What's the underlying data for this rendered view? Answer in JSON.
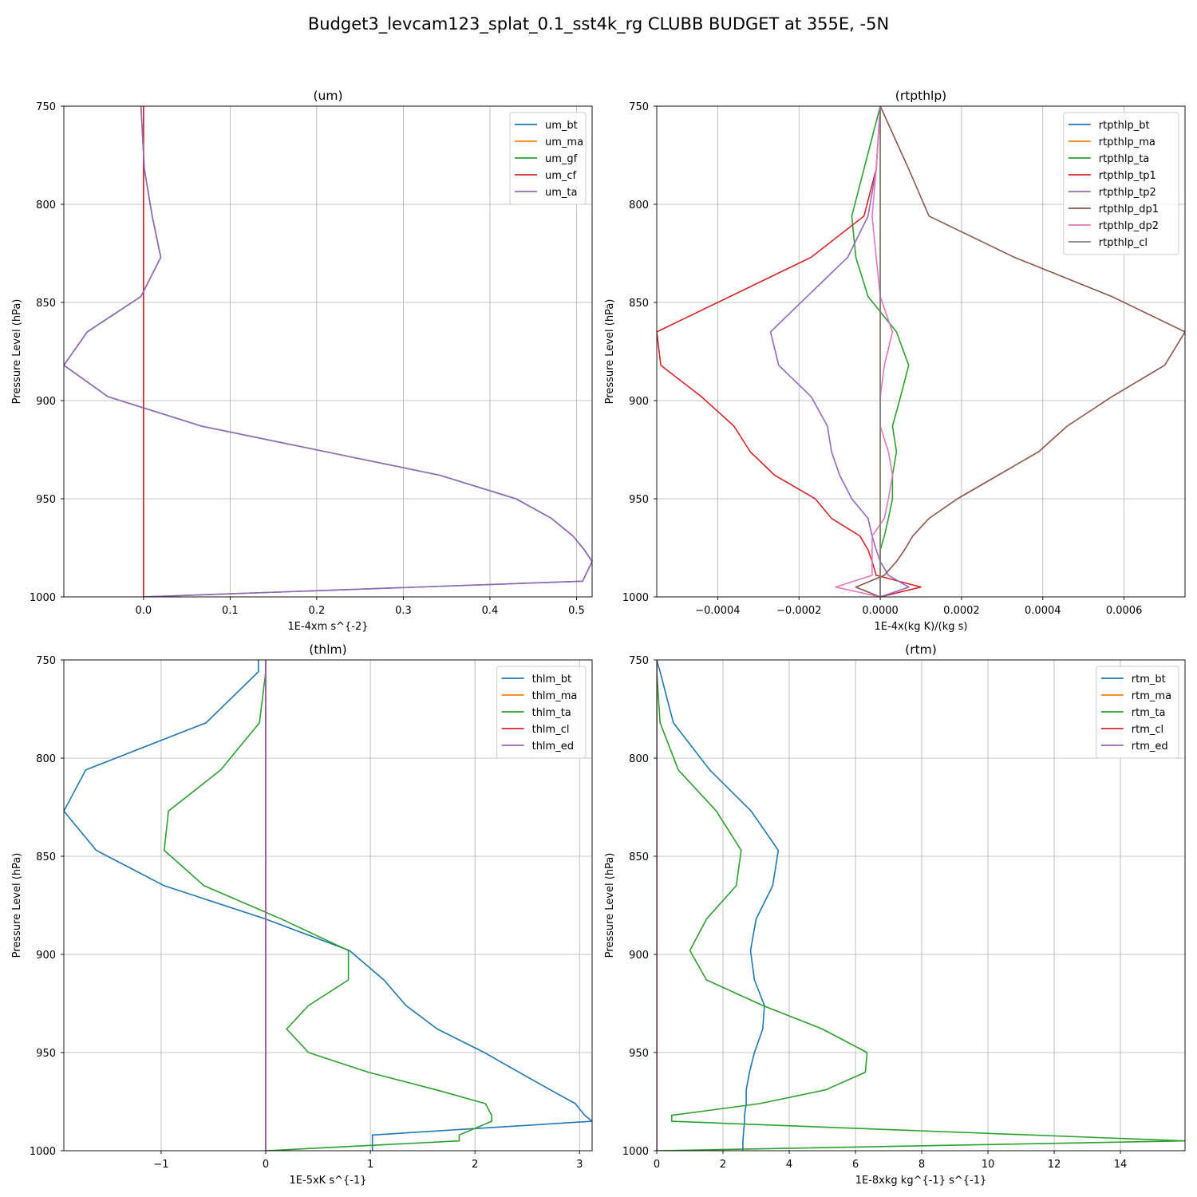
{
  "figure": {
    "title": "Budget3_levcam123_splat_0.1_sst4k_rg CLUBB BUDGET at 355E, -5N"
  },
  "chart_data": [
    {
      "type": "line",
      "title": "(um)",
      "xlabel": "1E-4xm s^{-2}",
      "ylabel": "Pressure Level (hPa)",
      "xlim": [
        -0.092,
        0.518
      ],
      "ylim": [
        1000,
        750
      ],
      "xticks": [
        0.0,
        0.1,
        0.2,
        0.3,
        0.4,
        0.5
      ],
      "xtick_labels": [
        "0.0",
        "0.1",
        "0.2",
        "0.3",
        "0.4",
        "0.5"
      ],
      "yticks": [
        750,
        800,
        850,
        900,
        950,
        1000
      ],
      "ytick_labels": [
        "750",
        "800",
        "850",
        "900",
        "950",
        "1000"
      ],
      "grid": true,
      "legend": "upper right",
      "levels": [
        750,
        782,
        806,
        827,
        847,
        865,
        882,
        898,
        913,
        926,
        938,
        950,
        960,
        969,
        976,
        982,
        992,
        1000
      ],
      "series": [
        {
          "name": "um_bt",
          "color": "#1f77b4",
          "values": [
            0,
            0,
            0,
            0,
            0,
            0,
            0,
            0,
            0,
            0,
            0,
            0,
            0,
            0,
            0,
            0,
            0,
            0
          ]
        },
        {
          "name": "um_ma",
          "color": "#ff7f0e",
          "values": [
            0,
            0,
            0,
            0,
            0,
            0,
            0,
            0,
            0,
            0,
            0,
            0,
            0,
            0,
            0,
            0,
            0,
            0
          ]
        },
        {
          "name": "um_gf",
          "color": "#2ca02c",
          "values": [
            -0.003,
            0.001,
            0.01,
            0.02,
            -0.003,
            -0.065,
            -0.092,
            -0.041,
            0.067,
            0.21,
            0.342,
            0.43,
            0.471,
            0.496,
            0.509,
            0.518,
            0.507,
            0.0
          ]
        },
        {
          "name": "um_cf",
          "color": "#d62728",
          "values": [
            0,
            0,
            0,
            0,
            0,
            0,
            0,
            0,
            0,
            0,
            0,
            0,
            0,
            0,
            0,
            0,
            0,
            0
          ]
        },
        {
          "name": "um_ta",
          "color": "#9467bd",
          "values": [
            -0.003,
            0.001,
            0.01,
            0.02,
            -0.003,
            -0.065,
            -0.092,
            -0.041,
            0.067,
            0.21,
            0.342,
            0.43,
            0.471,
            0.496,
            0.509,
            0.518,
            0.507,
            0.0
          ]
        }
      ]
    },
    {
      "type": "line",
      "title": "(rtpthlp)",
      "xlabel": "1E-4x(kg K)/(kg s)",
      "ylabel": "Pressure Level (hPa)",
      "xlim": [
        -0.00055,
        0.00075
      ],
      "ylim": [
        1000,
        750
      ],
      "xticks": [
        -0.0004,
        -0.0002,
        0.0,
        0.0002,
        0.0004,
        0.0006
      ],
      "xtick_labels": [
        "−0.0004",
        "−0.0002",
        "0.0000",
        "0.0002",
        "0.0004",
        "0.0006"
      ],
      "yticks": [
        750,
        800,
        850,
        900,
        950,
        1000
      ],
      "ytick_labels": [
        "750",
        "800",
        "850",
        "900",
        "950",
        "1000"
      ],
      "grid": true,
      "legend": "upper right",
      "levels": [
        750,
        782,
        806,
        827,
        847,
        865,
        882,
        898,
        913,
        926,
        938,
        950,
        960,
        969,
        976,
        982,
        989,
        995,
        1000
      ],
      "series": [
        {
          "name": "rtpthlp_bt",
          "color": "#1f77b4",
          "values": [
            0,
            0,
            0,
            0,
            0,
            0,
            0,
            0,
            0,
            0,
            0,
            0,
            0,
            0,
            0,
            0,
            0,
            0,
            0
          ]
        },
        {
          "name": "rtpthlp_ma",
          "color": "#ff7f0e",
          "values": [
            0,
            0,
            0,
            0,
            0,
            0,
            0,
            0,
            0,
            0,
            0,
            0,
            0,
            0,
            0,
            0,
            0,
            0,
            0
          ]
        },
        {
          "name": "rtpthlp_ta",
          "color": "#2ca02c",
          "values": [
            0,
            -4e-05,
            -7e-05,
            -6e-05,
            -3e-05,
            4e-05,
            7e-05,
            5e-05,
            3e-05,
            4e-05,
            3e-05,
            3e-05,
            2e-05,
            1e-05,
            0,
            0,
            0,
            0,
            0
          ]
        },
        {
          "name": "rtpthlp_tp1",
          "color": "#d62728",
          "values": [
            0,
            -1e-05,
            -4e-05,
            -0.00017,
            -0.00037,
            -0.00055,
            -0.00054,
            -0.00044,
            -0.00036,
            -0.00032,
            -0.00026,
            -0.00016,
            -0.00012,
            -5e-05,
            -3e-05,
            -2e-05,
            -1e-05,
            0.0001,
            0
          ]
        },
        {
          "name": "rtpthlp_tp2",
          "color": "#9467bd",
          "values": [
            0,
            -1e-05,
            -3e-05,
            -8e-05,
            -0.00018,
            -0.00027,
            -0.00025,
            -0.00017,
            -0.00013,
            -0.00012,
            -0.0001,
            -7e-05,
            -3e-05,
            -2e-05,
            -1e-05,
            0,
            2e-05,
            7e-05,
            0
          ]
        },
        {
          "name": "rtpthlp_dp1",
          "color": "#8c564b",
          "values": [
            0,
            7e-05,
            0.00012,
            0.00033,
            0.00057,
            0.00075,
            0.0007,
            0.00057,
            0.00046,
            0.00039,
            0.00029,
            0.00019,
            0.00012,
            8e-05,
            6e-05,
            4e-05,
            1e-05,
            -6e-05,
            0
          ]
        },
        {
          "name": "rtpthlp_dp2",
          "color": "#e377c2",
          "values": [
            0,
            -1e-05,
            -2e-05,
            -1e-05,
            0,
            3e-05,
            1e-05,
            0,
            0,
            2e-05,
            3e-05,
            2e-05,
            1e-05,
            -2e-05,
            -2e-05,
            -2e-05,
            -2e-05,
            -0.00011,
            0
          ]
        },
        {
          "name": "rtpthlp_cl",
          "color": "#7f7f7f",
          "values": [
            0,
            0,
            0,
            0,
            0,
            0,
            0,
            0,
            0,
            0,
            0,
            0,
            0,
            0,
            0,
            0,
            0,
            0,
            0
          ]
        }
      ]
    },
    {
      "type": "line",
      "title": "(thlm)",
      "xlabel": "1E-5xK s^{-1}",
      "ylabel": "Pressure Level (hPa)",
      "xlim": [
        -1.93,
        3.12
      ],
      "ylim": [
        1000,
        750
      ],
      "xticks": [
        -1,
        0,
        1,
        2,
        3
      ],
      "xtick_labels": [
        "−1",
        "0",
        "1",
        "2",
        "3"
      ],
      "yticks": [
        750,
        800,
        850,
        900,
        950,
        1000
      ],
      "ytick_labels": [
        "750",
        "800",
        "850",
        "900",
        "950",
        "1000"
      ],
      "grid": true,
      "legend": "upper right",
      "levels": [
        750,
        756,
        782,
        806,
        827,
        847,
        865,
        882,
        898,
        913,
        926,
        938,
        950,
        960,
        969,
        976,
        982,
        985,
        992,
        995,
        1000
      ],
      "series": [
        {
          "name": "thlm_bt",
          "color": "#1f77b4",
          "values": [
            -0.07,
            -0.07,
            -0.57,
            -1.72,
            -1.93,
            -1.62,
            -0.97,
            0.0,
            0.8,
            1.13,
            1.34,
            1.64,
            2.09,
            2.42,
            2.72,
            2.96,
            3.05,
            3.12,
            1.02,
            1.02,
            1.02
          ]
        },
        {
          "name": "thlm_ma",
          "color": "#ff7f0e",
          "values": [
            0,
            0,
            0,
            0,
            0,
            0,
            0,
            0,
            0,
            0,
            0,
            0,
            0,
            0,
            0,
            0,
            0,
            0,
            0,
            0,
            0
          ]
        },
        {
          "name": "thlm_ta",
          "color": "#2ca02c",
          "values": [
            0.0,
            0.0,
            -0.06,
            -0.43,
            -0.93,
            -0.97,
            -0.59,
            0.15,
            0.79,
            0.79,
            0.41,
            0.2,
            0.41,
            0.98,
            1.63,
            2.1,
            2.16,
            2.16,
            1.85,
            1.85,
            0.0
          ]
        },
        {
          "name": "thlm_cl",
          "color": "#d62728",
          "values": [
            0,
            0,
            0,
            0,
            0,
            0,
            0,
            0,
            0,
            0,
            0,
            0,
            0,
            0,
            0,
            0,
            0,
            0,
            0,
            0,
            0
          ]
        },
        {
          "name": "thlm_ed",
          "color": "#9467bd",
          "values": [
            0,
            0,
            0,
            0,
            0,
            0,
            0,
            0,
            0,
            0,
            0,
            0,
            0,
            0,
            0,
            0,
            0,
            0,
            0,
            0,
            0
          ]
        }
      ]
    },
    {
      "type": "line",
      "title": "(rtm)",
      "xlabel": "1E-8xkg kg^{-1} s^{-1}",
      "ylabel": "Pressure Level (hPa)",
      "xlim": [
        0,
        15.95
      ],
      "ylim": [
        1000,
        750
      ],
      "xticks": [
        0,
        2,
        4,
        6,
        8,
        10,
        12,
        14
      ],
      "xtick_labels": [
        "0",
        "2",
        "4",
        "6",
        "8",
        "10",
        "12",
        "14"
      ],
      "yticks": [
        750,
        800,
        850,
        900,
        950,
        1000
      ],
      "ytick_labels": [
        "750",
        "800",
        "850",
        "900",
        "950",
        "1000"
      ],
      "grid": true,
      "legend": "upper right",
      "levels": [
        750,
        756,
        782,
        806,
        827,
        847,
        865,
        882,
        898,
        913,
        926,
        938,
        950,
        960,
        969,
        976,
        982,
        985,
        995,
        1000
      ],
      "series": [
        {
          "name": "rtm_bt",
          "color": "#1f77b4",
          "values": [
            0.0,
            0.1,
            0.5,
            1.6,
            2.85,
            3.67,
            3.5,
            3.0,
            2.83,
            2.95,
            3.25,
            3.2,
            2.95,
            2.8,
            2.7,
            2.7,
            2.65,
            2.65,
            2.6,
            2.6
          ]
        },
        {
          "name": "rtm_ma",
          "color": "#ff7f0e",
          "values": [
            0,
            0,
            0,
            0,
            0,
            0,
            0,
            0,
            0,
            0,
            0,
            0,
            0,
            0,
            0,
            0,
            0,
            0,
            0,
            0
          ]
        },
        {
          "name": "rtm_ta",
          "color": "#2ca02c",
          "values": [
            0.0,
            0.0,
            0.1,
            0.65,
            1.8,
            2.55,
            2.4,
            1.5,
            1.0,
            1.5,
            3.2,
            5.0,
            6.35,
            6.3,
            5.1,
            3.1,
            0.45,
            0.45,
            15.95,
            0.0
          ]
        },
        {
          "name": "rtm_cl",
          "color": "#d62728",
          "values": [
            0,
            0,
            0,
            0,
            0,
            0,
            0,
            0,
            0,
            0,
            0,
            0,
            0,
            0,
            0,
            0,
            0,
            0,
            0,
            0
          ]
        },
        {
          "name": "rtm_ed",
          "color": "#9467bd",
          "values": [
            0,
            0,
            0,
            0,
            0,
            0,
            0,
            0,
            0,
            0,
            0,
            0,
            0,
            0,
            0,
            0,
            0,
            0,
            0,
            0
          ]
        }
      ]
    }
  ]
}
